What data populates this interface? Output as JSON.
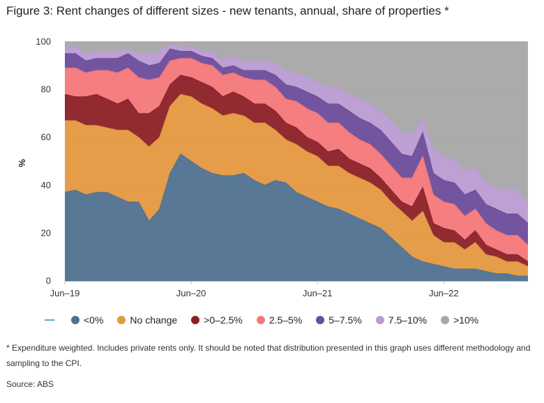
{
  "title": "Figure 3: Rent changes of different sizes - new tenants, annual, share of properties *",
  "note": "* Expenditure weighted. Includes private rents only. It should be noted that distribution presented in this graph uses different methodology and sampling to the CPI.",
  "source": "Source: ABS",
  "chart_data": {
    "type": "area",
    "stacked": true,
    "title": "Figure 3: Rent changes of different sizes - new tenants, annual, share of properties *",
    "xlabel": "",
    "ylabel": "%",
    "ylim": [
      0,
      100
    ],
    "yticks": [
      0,
      20,
      40,
      60,
      80,
      100
    ],
    "x_tick_labels": [
      {
        "index": 0,
        "label": "Jun–19"
      },
      {
        "index": 12,
        "label": "Jun–20"
      },
      {
        "index": 24,
        "label": "Jun–21"
      },
      {
        "index": 36,
        "label": "Jun–22"
      }
    ],
    "x": [
      "Jun-19",
      "Jul-19",
      "Aug-19",
      "Sep-19",
      "Oct-19",
      "Nov-19",
      "Dec-19",
      "Jan-20",
      "Feb-20",
      "Mar-20",
      "Apr-20",
      "May-20",
      "Jun-20",
      "Jul-20",
      "Aug-20",
      "Sep-20",
      "Oct-20",
      "Nov-20",
      "Dec-20",
      "Jan-21",
      "Feb-21",
      "Mar-21",
      "Apr-21",
      "May-21",
      "Jun-21",
      "Jul-21",
      "Aug-21",
      "Sep-21",
      "Oct-21",
      "Nov-21",
      "Dec-21",
      "Jan-22",
      "Feb-22",
      "Mar-22",
      "Apr-22",
      "May-22",
      "Jun-22",
      "Jul-22",
      "Aug-22",
      "Sep-22",
      "Oct-22",
      "Nov-22",
      "Dec-22",
      "Jan-23",
      "Feb-23"
    ],
    "grid": true,
    "legend_position": "bottom",
    "series": [
      {
        "name": "<0%",
        "color": "#4f7190",
        "values": [
          37,
          38,
          36,
          37,
          37,
          35,
          33,
          33,
          25,
          30,
          45,
          53,
          50,
          47,
          45,
          44,
          44,
          45,
          42,
          40,
          42,
          41,
          37,
          35,
          33,
          31,
          30,
          28,
          26,
          24,
          22,
          18,
          14,
          10,
          8,
          7,
          6,
          5,
          5,
          5,
          4,
          3,
          3,
          2,
          2
        ]
      },
      {
        "name": "No change",
        "color": "#e4983f",
        "values": [
          30,
          29,
          29,
          28,
          27,
          28,
          30,
          27,
          31,
          30,
          28,
          25,
          27,
          27,
          27,
          25,
          26,
          24,
          24,
          26,
          21,
          18,
          20,
          19,
          19,
          17,
          18,
          17,
          17,
          17,
          16,
          15,
          15,
          15,
          21,
          12,
          10,
          11,
          8,
          11,
          7,
          7,
          5,
          6,
          4
        ]
      },
      {
        "name": ">0–2.5%",
        "color": "#8c1f26",
        "values": [
          11,
          10,
          12,
          13,
          12,
          11,
          13,
          10,
          14,
          13,
          9,
          8,
          8,
          9,
          9,
          8,
          9,
          8,
          8,
          8,
          8,
          7,
          7,
          6,
          6,
          6,
          7,
          6,
          6,
          6,
          5,
          5,
          4,
          6,
          10,
          5,
          6,
          5,
          4,
          5,
          4,
          3,
          3,
          3,
          2
        ]
      },
      {
        "name": "2.5–5%",
        "color": "#f4777a",
        "values": [
          11,
          12,
          10,
          10,
          12,
          13,
          13,
          15,
          14,
          12,
          10,
          7,
          8,
          8,
          9,
          9,
          8,
          8,
          10,
          10,
          10,
          10,
          11,
          12,
          12,
          12,
          11,
          11,
          10,
          10,
          10,
          10,
          10,
          12,
          13,
          12,
          11,
          11,
          10,
          9,
          9,
          8,
          8,
          8,
          7
        ]
      },
      {
        "name": "5–7.5%",
        "color": "#6b4c9a",
        "values": [
          6,
          6,
          5,
          5,
          5,
          6,
          6,
          7,
          6,
          6,
          5,
          3,
          3,
          3,
          3,
          3,
          3,
          3,
          4,
          4,
          5,
          6,
          6,
          7,
          7,
          8,
          8,
          9,
          9,
          9,
          10,
          10,
          10,
          9,
          10,
          9,
          9,
          9,
          9,
          8,
          8,
          9,
          9,
          9,
          9
        ]
      },
      {
        "name": "7.5–10%",
        "color": "#b99bd2",
        "values": [
          3,
          3,
          3,
          3,
          3,
          3,
          2,
          3,
          5,
          5,
          2,
          2,
          2,
          2,
          3,
          3,
          4,
          4,
          4,
          4,
          5,
          6,
          6,
          6,
          6,
          7,
          7,
          7,
          8,
          8,
          8,
          9,
          9,
          9,
          6,
          10,
          10,
          10,
          10,
          9,
          9,
          9,
          10,
          10,
          9
        ]
      },
      {
        "name": ">10%",
        "color": "#a7a7a7",
        "values": [
          2,
          2,
          5,
          4,
          4,
          4,
          3,
          5,
          5,
          4,
          1,
          2,
          2,
          4,
          4,
          8,
          6,
          8,
          8,
          8,
          9,
          12,
          13,
          15,
          17,
          19,
          19,
          22,
          24,
          26,
          29,
          33,
          38,
          39,
          32,
          45,
          48,
          49,
          54,
          53,
          59,
          61,
          62,
          62,
          67
        ]
      }
    ]
  }
}
